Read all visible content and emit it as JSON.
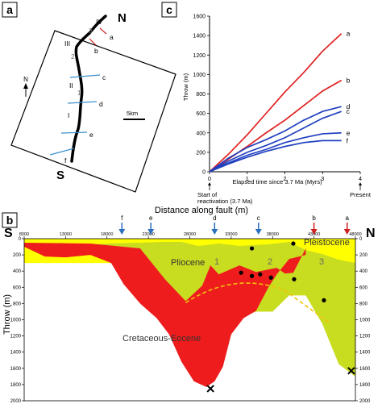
{
  "panels": {
    "a": {
      "label": "a",
      "north": "N",
      "south": "S",
      "fault_label_n": "N",
      "segments": [
        "I",
        "II",
        "III",
        "IV"
      ],
      "segment_nums": [
        "1",
        "2",
        "3"
      ],
      "profiles": [
        "a",
        "b",
        "c",
        "d",
        "e",
        "f"
      ],
      "scale": "5km"
    },
    "b": {
      "label": "b",
      "title": "Distance along fault (m)",
      "ylabel": "Throw (m)",
      "left": "S",
      "right": "N",
      "units": [
        "Pliocene",
        "Pleistocene",
        "Cretaceous-Eocene"
      ],
      "segment_nums": [
        "1",
        "2",
        "3"
      ],
      "markers": [
        "f",
        "e",
        "d",
        "c",
        "b",
        "a"
      ]
    },
    "c": {
      "label": "c",
      "start_label": "Start of reactivation (3.7 Ma)",
      "end_label": "Present"
    }
  },
  "chart_data": [
    {
      "type": "line",
      "panel": "c",
      "xlabel": "Elapsed time since 3.7 Ma (Myrs)",
      "ylabel": "Throw (m)",
      "xlim": [
        0,
        4
      ],
      "ylim": [
        0,
        1600
      ],
      "xticks": [
        0,
        1,
        2,
        3,
        4
      ],
      "yticks": [
        0,
        200,
        400,
        600,
        800,
        1000,
        1200,
        1400,
        1600
      ],
      "series": [
        {
          "name": "a",
          "color": "#e02020",
          "x": [
            0,
            0.5,
            1,
            1.5,
            2,
            2.5,
            3,
            3.5
          ],
          "y": [
            0,
            180,
            380,
            600,
            820,
            1020,
            1240,
            1420
          ]
        },
        {
          "name": "b",
          "color": "#e02020",
          "x": [
            0,
            0.5,
            1,
            1.5,
            2,
            2.5,
            3,
            3.5
          ],
          "y": [
            0,
            130,
            260,
            400,
            530,
            680,
            830,
            940
          ]
        },
        {
          "name": "d",
          "color": "#2040c0",
          "x": [
            0,
            0.5,
            1,
            1.5,
            2,
            2.5,
            3,
            3.5
          ],
          "y": [
            0,
            140,
            250,
            330,
            420,
            530,
            620,
            670
          ]
        },
        {
          "name": "c",
          "color": "#2040c0",
          "x": [
            0,
            0.5,
            1,
            1.5,
            2,
            2.5,
            3,
            3.5
          ],
          "y": [
            0,
            110,
            200,
            270,
            350,
            450,
            550,
            620
          ]
        },
        {
          "name": "e",
          "color": "#2040c0",
          "x": [
            0,
            0.5,
            1,
            1.5,
            2,
            2.5,
            3,
            3.5
          ],
          "y": [
            0,
            90,
            170,
            230,
            300,
            350,
            390,
            400
          ]
        },
        {
          "name": "f",
          "color": "#2040c0",
          "x": [
            0,
            0.5,
            1,
            1.5,
            2,
            2.5,
            3,
            3.5
          ],
          "y": [
            0,
            80,
            150,
            210,
            260,
            300,
            320,
            320
          ]
        }
      ]
    },
    {
      "type": "area",
      "panel": "b",
      "xlabel": "Distance along fault (m)",
      "ylabel": "Throw (m)",
      "xlim": [
        8000,
        48000
      ],
      "ylim": [
        2000,
        0
      ],
      "xticks": [
        8000,
        13000,
        18000,
        23000,
        28000,
        33000,
        38000,
        43000,
        48000
      ],
      "yticks": [
        0,
        200,
        400,
        600,
        800,
        1000,
        1200,
        1400,
        1600,
        1800,
        2000
      ],
      "arrows": [
        {
          "name": "f",
          "x": 19800,
          "color": "#2a6fc0"
        },
        {
          "name": "e",
          "x": 23300,
          "color": "#2a6fc0"
        },
        {
          "name": "d",
          "x": 31000,
          "color": "#2a6fc0"
        },
        {
          "name": "c",
          "x": 36300,
          "color": "#2a6fc0"
        },
        {
          "name": "b",
          "x": 43000,
          "color": "#d02020"
        },
        {
          "name": "a",
          "x": 47000,
          "color": "#d02020"
        }
      ],
      "series": [
        {
          "name": "Pleistocene",
          "color": "#ffff00",
          "x": [
            8000,
            48000
          ],
          "y": [
            0,
            0
          ]
        },
        {
          "name": "Pliocene",
          "color": "#c8dc20",
          "x": [
            8000,
            10000,
            12500,
            15000,
            18000,
            22000,
            24500,
            27000,
            29000,
            31500,
            34000,
            37500,
            40000,
            42000,
            44000,
            46000,
            48000
          ],
          "y": [
            50,
            70,
            50,
            80,
            60,
            50,
            40,
            40,
            90,
            60,
            90,
            70,
            40,
            140,
            190,
            260,
            300
          ]
        },
        {
          "name": "Cretaceous-Eocene",
          "color": "#ee1c1c",
          "x": [
            8000,
            10500,
            13000,
            16000,
            18500,
            20000,
            22000,
            24000,
            25500,
            27000,
            28500,
            30000,
            31000,
            32000,
            33000,
            34500,
            36000,
            37500,
            38500,
            40000,
            42000
          ],
          "y": [
            100,
            220,
            230,
            200,
            300,
            560,
            800,
            980,
            1180,
            1520,
            1760,
            1830,
            1760,
            1580,
            1180,
            980,
            890,
            600,
            440,
            250,
            200
          ]
        }
      ],
      "points": [
        {
          "x": 30500,
          "y": 1850
        },
        {
          "x": 47500,
          "y": 1630
        }
      ]
    }
  ]
}
